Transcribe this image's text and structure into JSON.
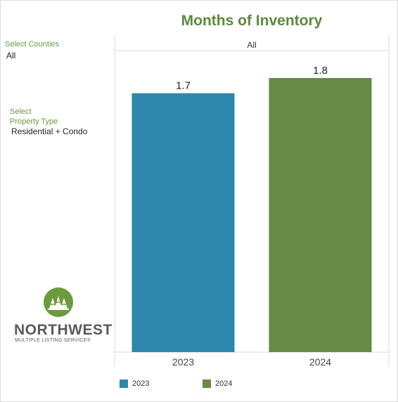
{
  "chart_data": {
    "type": "bar",
    "title": "Months of Inventory",
    "facet_label": "All",
    "categories": [
      "2023",
      "2024"
    ],
    "values": [
      1.7,
      1.8
    ],
    "data_labels": [
      "1.7",
      "1.8"
    ],
    "colors": [
      "#2e87ad",
      "#678a47"
    ],
    "ylim": [
      0,
      1.8
    ],
    "grid": false,
    "legend_position": "bottom",
    "legend": [
      {
        "label": "2023",
        "color": "#2e87ad"
      },
      {
        "label": "2024",
        "color": "#678a47"
      }
    ]
  },
  "filters": {
    "counties_label": "Select Counties",
    "counties_value": "All",
    "property_type_label_line1": "Select",
    "property_type_label_line2": "Property Type",
    "property_type_value": "Residential + Condo"
  },
  "logo": {
    "name": "NORTHWEST",
    "subtitle": "MULTIPLE LISTING SERVICE®",
    "colors": {
      "circle": "#6b9a3f",
      "text": "#5a5a5a"
    }
  }
}
